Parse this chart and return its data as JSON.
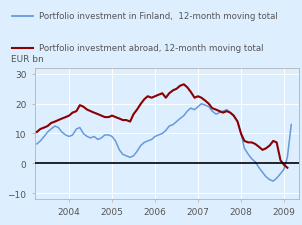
{
  "legend_line1": "Portfolio investment in Finland,  12-month moving total",
  "legend_line2": "Portfolio investment abroad, 12-month moving total",
  "ylabel": "EUR bn",
  "ylim": [
    -12,
    32
  ],
  "yticks": [
    -10,
    0,
    10,
    20,
    30
  ],
  "fig_bg_color": "#ddeeff",
  "plot_bg_color": "#ddeeff",
  "line1_color": "#6699dd",
  "line2_color": "#8b0000",
  "zero_line_color": "#000000",
  "grid_color": "#ffffff",
  "finland_x": [
    2003.25,
    2003.33,
    2003.42,
    2003.5,
    2003.58,
    2003.67,
    2003.75,
    2003.83,
    2003.92,
    2004.0,
    2004.08,
    2004.17,
    2004.25,
    2004.33,
    2004.42,
    2004.5,
    2004.58,
    2004.67,
    2004.75,
    2004.83,
    2004.92,
    2005.0,
    2005.08,
    2005.17,
    2005.25,
    2005.33,
    2005.42,
    2005.5,
    2005.58,
    2005.67,
    2005.75,
    2005.83,
    2005.92,
    2006.0,
    2006.08,
    2006.17,
    2006.25,
    2006.33,
    2006.42,
    2006.5,
    2006.58,
    2006.67,
    2006.75,
    2006.83,
    2006.92,
    2007.0,
    2007.08,
    2007.17,
    2007.25,
    2007.33,
    2007.42,
    2007.5,
    2007.58,
    2007.67,
    2007.75,
    2007.83,
    2007.92,
    2008.0,
    2008.08,
    2008.17,
    2008.25,
    2008.33,
    2008.42,
    2008.5,
    2008.58,
    2008.67,
    2008.75,
    2008.83,
    2008.92,
    2009.0,
    2009.08,
    2009.17
  ],
  "finland_y": [
    6.5,
    7.5,
    9.0,
    10.5,
    11.5,
    12.5,
    12.0,
    10.5,
    9.5,
    9.0,
    9.5,
    11.5,
    12.0,
    10.0,
    9.0,
    8.5,
    9.0,
    8.0,
    8.5,
    9.5,
    9.5,
    9.0,
    7.5,
    4.5,
    3.0,
    2.5,
    2.0,
    2.5,
    4.0,
    6.0,
    7.0,
    7.5,
    8.0,
    9.0,
    9.5,
    10.0,
    11.0,
    12.5,
    13.0,
    14.0,
    15.0,
    16.0,
    17.5,
    18.5,
    18.0,
    19.0,
    20.0,
    19.5,
    19.0,
    17.5,
    16.5,
    17.0,
    17.5,
    18.0,
    17.0,
    16.0,
    14.0,
    10.0,
    5.0,
    3.0,
    1.5,
    0.5,
    -1.5,
    -3.0,
    -4.5,
    -5.5,
    -6.0,
    -5.0,
    -3.5,
    -2.0,
    2.0,
    13.0
  ],
  "abroad_x": [
    2003.25,
    2003.33,
    2003.42,
    2003.5,
    2003.58,
    2003.67,
    2003.75,
    2003.83,
    2003.92,
    2004.0,
    2004.08,
    2004.17,
    2004.25,
    2004.33,
    2004.42,
    2004.5,
    2004.58,
    2004.67,
    2004.75,
    2004.83,
    2004.92,
    2005.0,
    2005.08,
    2005.17,
    2005.25,
    2005.33,
    2005.42,
    2005.5,
    2005.58,
    2005.67,
    2005.75,
    2005.83,
    2005.92,
    2006.0,
    2006.08,
    2006.17,
    2006.25,
    2006.33,
    2006.42,
    2006.5,
    2006.58,
    2006.67,
    2006.75,
    2006.83,
    2006.92,
    2007.0,
    2007.08,
    2007.17,
    2007.25,
    2007.33,
    2007.42,
    2007.5,
    2007.58,
    2007.67,
    2007.75,
    2007.83,
    2007.92,
    2008.0,
    2008.08,
    2008.17,
    2008.25,
    2008.33,
    2008.42,
    2008.5,
    2008.58,
    2008.67,
    2008.75,
    2008.83,
    2008.92,
    2009.0,
    2009.08
  ],
  "abroad_y": [
    10.5,
    11.5,
    12.0,
    12.5,
    13.5,
    14.0,
    14.5,
    15.0,
    15.5,
    16.0,
    17.0,
    17.5,
    19.5,
    19.0,
    18.0,
    17.5,
    17.0,
    16.5,
    16.0,
    15.5,
    15.5,
    16.0,
    15.5,
    15.0,
    14.5,
    14.5,
    14.0,
    16.5,
    18.0,
    20.0,
    21.5,
    22.5,
    22.0,
    22.5,
    23.0,
    23.5,
    22.0,
    23.5,
    24.5,
    25.0,
    26.0,
    26.5,
    25.5,
    24.0,
    22.0,
    22.5,
    22.0,
    21.0,
    20.0,
    18.5,
    18.0,
    17.5,
    17.0,
    17.5,
    17.0,
    16.0,
    14.0,
    10.0,
    7.5,
    7.0,
    7.0,
    6.5,
    5.5,
    4.5,
    5.0,
    6.0,
    7.5,
    7.0,
    1.0,
    -0.5,
    -1.5
  ],
  "xlim": [
    2003.2,
    2009.35
  ],
  "xticks": [
    2004,
    2005,
    2006,
    2007,
    2008,
    2009
  ],
  "xtick_labels": [
    "2004",
    "2005",
    "2006",
    "2007",
    "2008",
    "2009"
  ],
  "legend_text_color": "#555555",
  "ylabel_color": "#555555"
}
